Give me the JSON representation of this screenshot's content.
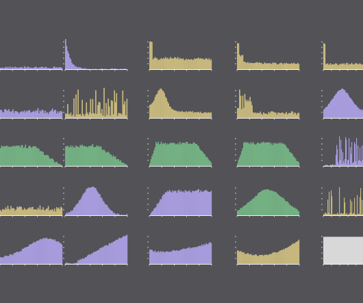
{
  "figure": {
    "background": "#525257",
    "axis_color": "#f2f2f2",
    "palette": {
      "purple": "#a79bdc",
      "tan": "#c6b77d",
      "green": "#73b083",
      "gray": "#d8d8d8"
    }
  },
  "chart_data": [
    {
      "type": "bar",
      "row": 0,
      "col": 0,
      "color": "purple",
      "shape": "flat-low",
      "bins": 60,
      "ylim": [
        0,
        1
      ]
    },
    {
      "type": "bar",
      "row": 0,
      "col": 1,
      "color": "purple",
      "shape": "sharp-decay",
      "bins": 60,
      "ylim": [
        0,
        1
      ]
    },
    {
      "type": "bar",
      "row": 0,
      "col": 2,
      "color": "tan",
      "shape": "spike-then-flat",
      "bins": 60,
      "ylim": [
        0,
        1
      ]
    },
    {
      "type": "bar",
      "row": 0,
      "col": 3,
      "color": "tan",
      "shape": "spike-then-decay",
      "bins": 60,
      "ylim": [
        0,
        1
      ]
    },
    {
      "type": "bar",
      "row": 0,
      "col": 4,
      "color": "tan",
      "shape": "spike-then-low-flat",
      "bins": 60,
      "ylim": [
        0,
        1
      ]
    },
    {
      "type": "bar",
      "row": 1,
      "col": 0,
      "color": "purple",
      "shape": "noisy-low-flat",
      "bins": 60,
      "ylim": [
        0,
        1
      ]
    },
    {
      "type": "bar",
      "row": 1,
      "col": 1,
      "color": "tan",
      "shape": "sparse-spiky",
      "bins": 60,
      "ylim": [
        0,
        1
      ]
    },
    {
      "type": "bar",
      "row": 1,
      "col": 2,
      "color": "tan",
      "shape": "right-skewed",
      "bins": 60,
      "ylim": [
        0,
        1
      ]
    },
    {
      "type": "bar",
      "row": 1,
      "col": 3,
      "color": "tan",
      "shape": "early-spike-decay",
      "bins": 60,
      "ylim": [
        0,
        1
      ]
    },
    {
      "type": "bar",
      "row": 1,
      "col": 4,
      "color": "purple",
      "shape": "mid-hump",
      "bins": 60,
      "ylim": [
        0,
        1
      ]
    },
    {
      "type": "bar",
      "row": 2,
      "col": 0,
      "color": "green",
      "shape": "plateau-decline",
      "bins": 60,
      "ylim": [
        0,
        1
      ]
    },
    {
      "type": "bar",
      "row": 2,
      "col": 1,
      "color": "green",
      "shape": "plateau-decline",
      "bins": 60,
      "ylim": [
        0,
        1
      ]
    },
    {
      "type": "bar",
      "row": 2,
      "col": 2,
      "color": "green",
      "shape": "broad-plateau",
      "bins": 60,
      "ylim": [
        0,
        1
      ]
    },
    {
      "type": "bar",
      "row": 2,
      "col": 3,
      "color": "green",
      "shape": "broad-plateau",
      "bins": 60,
      "ylim": [
        0,
        1
      ]
    },
    {
      "type": "bar",
      "row": 2,
      "col": 4,
      "color": "purple",
      "shape": "sparse-purple-spikes",
      "bins": 60,
      "ylim": [
        0,
        1
      ]
    },
    {
      "type": "bar",
      "row": 3,
      "col": 0,
      "color": "tan",
      "shape": "noisy-low-flat",
      "bins": 60,
      "ylim": [
        0,
        1
      ]
    },
    {
      "type": "bar",
      "row": 3,
      "col": 1,
      "color": "purple",
      "shape": "bell",
      "bins": 60,
      "ylim": [
        0,
        1
      ]
    },
    {
      "type": "bar",
      "row": 3,
      "col": 2,
      "color": "purple",
      "shape": "ramp-plateau",
      "bins": 60,
      "ylim": [
        0,
        1
      ]
    },
    {
      "type": "bar",
      "row": 3,
      "col": 3,
      "color": "green",
      "shape": "broad-bell",
      "bins": 60,
      "ylim": [
        0,
        1
      ]
    },
    {
      "type": "bar",
      "row": 3,
      "col": 4,
      "color": "tan",
      "shape": "sparse-spiky-tall",
      "bins": 60,
      "ylim": [
        0,
        1
      ]
    },
    {
      "type": "bar",
      "row": 4,
      "col": 0,
      "color": "purple",
      "shape": "rising-hump",
      "bins": 60,
      "ylim": [
        0,
        1
      ]
    },
    {
      "type": "bar",
      "row": 4,
      "col": 1,
      "color": "purple",
      "shape": "late-rise",
      "bins": 60,
      "ylim": [
        0,
        1
      ]
    },
    {
      "type": "bar",
      "row": 4,
      "col": 2,
      "color": "purple",
      "shape": "u-rise",
      "bins": 60,
      "ylim": [
        0,
        1
      ]
    },
    {
      "type": "bar",
      "row": 4,
      "col": 3,
      "color": "tan",
      "shape": "u-shape",
      "bins": 60,
      "ylim": [
        0,
        1
      ]
    },
    {
      "type": "bar",
      "row": 4,
      "col": 4,
      "color": "gray",
      "shape": "uniform",
      "bins": 60,
      "ylim": [
        0,
        1
      ]
    }
  ]
}
